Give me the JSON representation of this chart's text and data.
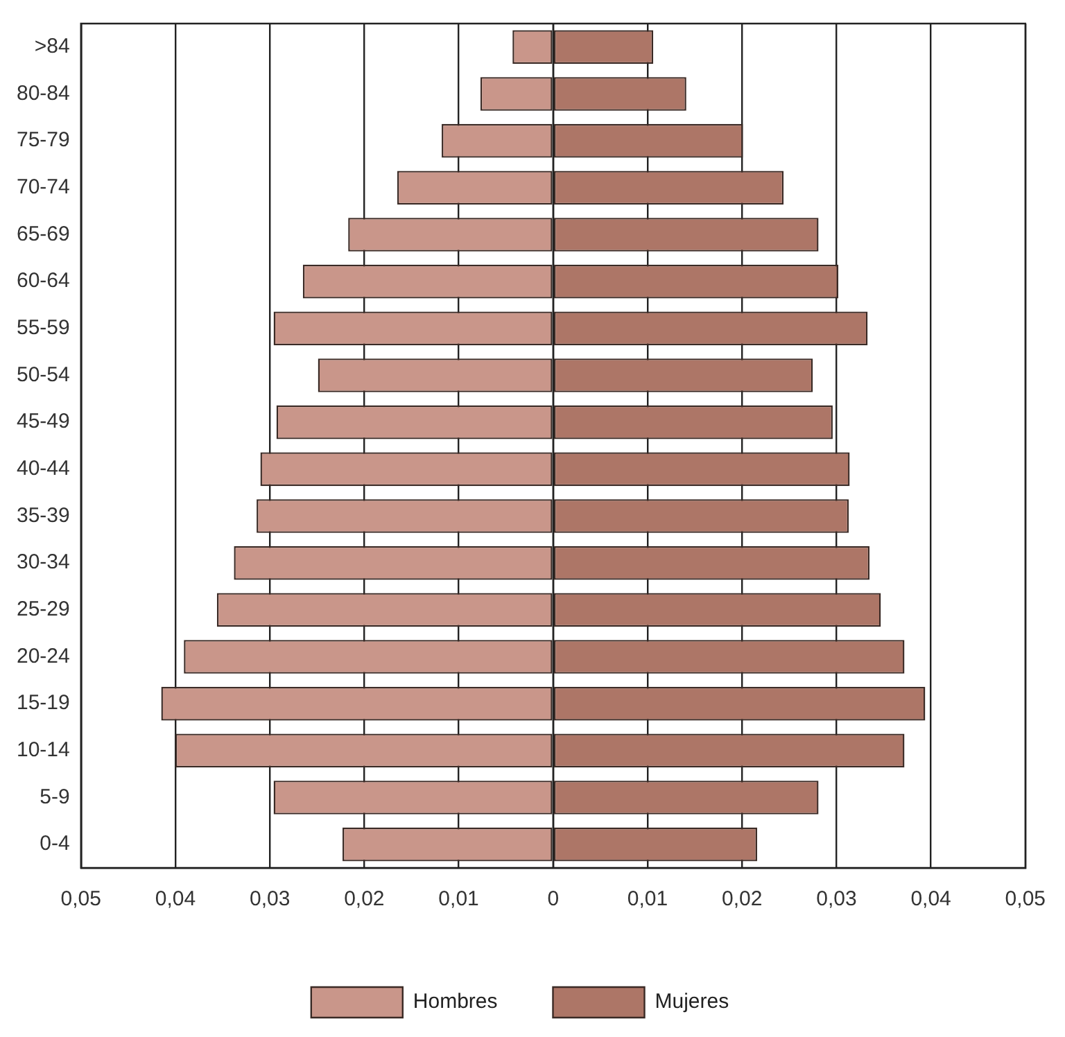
{
  "chart_data": {
    "type": "bar",
    "orientation": "horizontal",
    "stacked": true,
    "categories": [
      ">84",
      "80-84",
      "75-79",
      "70-74",
      "65-69",
      "60-64",
      "55-59",
      "50-54",
      "45-49",
      "40-44",
      "35-39",
      "30-34",
      "25-29",
      "20-24",
      "15-19",
      "10-14",
      "5-9",
      "0-4"
    ],
    "series": [
      {
        "name": "Hombres",
        "color": "#c9968a",
        "values": [
          -0.0043,
          -0.0077,
          -0.0118,
          -0.0165,
          -0.0217,
          -0.0265,
          -0.0296,
          -0.0249,
          -0.0293,
          -0.031,
          -0.0314,
          -0.0338,
          -0.0356,
          -0.0391,
          -0.0415,
          -0.04,
          -0.0296,
          -0.0223
        ]
      },
      {
        "name": "Mujeres",
        "color": "#ad7667",
        "values": [
          0.0106,
          0.0141,
          0.0201,
          0.0244,
          0.0281,
          0.0302,
          0.0333,
          0.0275,
          0.0296,
          0.0314,
          0.0313,
          0.0335,
          0.0347,
          0.0372,
          0.0394,
          0.0372,
          0.0281,
          0.0216
        ]
      }
    ],
    "xlim": [
      -0.05,
      0.05
    ],
    "xticks": [
      {
        "value": -0.05,
        "label": "0,05"
      },
      {
        "value": -0.04,
        "label": "0,04"
      },
      {
        "value": -0.03,
        "label": "0,03"
      },
      {
        "value": -0.02,
        "label": "0,02"
      },
      {
        "value": -0.01,
        "label": "0,01"
      },
      0,
      {
        "value": 0.01,
        "label": "0,01"
      },
      {
        "value": 0.02,
        "label": "0,02"
      },
      {
        "value": 0.03,
        "label": "0,03"
      },
      {
        "value": 0.04,
        "label": "0,04"
      },
      {
        "value": 0.05,
        "label": "0,05"
      }
    ],
    "grid": "x",
    "legend": "bottom"
  }
}
